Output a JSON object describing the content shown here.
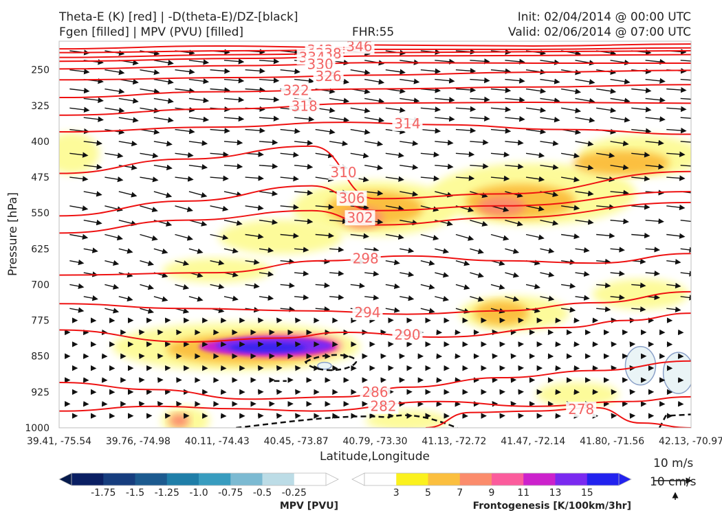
{
  "header": {
    "left_line1": "Theta-E (K) [red] | -D(theta-E)/DZ-[black]",
    "left_line2": "Fgen [filled] | MPV (PVU) [filled]",
    "center_line2": "FHR:55",
    "right_line1": "Init: 02/04/2014 @ 00:00 UTC",
    "right_line2": "Valid: 02/06/2014 @ 07:00 UTC"
  },
  "chart_data": {
    "type": "cross-section",
    "xlabel": "Latitude,Longitude",
    "ylabel": "Pressure [hPa]",
    "x_ticks": [
      "39.41, -75.54",
      "39.76, -74.98",
      "40.11, -74.43",
      "40.45, -73.87",
      "40.79, -73.30",
      "41.13, -72.72",
      "41.47, -72.14",
      "41.80, -71.56",
      "42.13, -70.97"
    ],
    "y_ticks": [
      "250",
      "325",
      "400",
      "475",
      "550",
      "625",
      "700",
      "775",
      "850",
      "925",
      "1000"
    ],
    "ylim": [
      1000,
      190
    ],
    "y_scale": "linear",
    "grid": false,
    "theta_e_contours": [
      {
        "label": "346",
        "points": [
          [
            0.0,
            206
          ],
          [
            0.25,
            200
          ],
          [
            0.45,
            203
          ],
          [
            0.5,
            198
          ],
          [
            0.75,
            200
          ],
          [
            1.0,
            196
          ]
        ]
      },
      {
        "label": "342",
        "points": [
          [
            0.0,
            214
          ],
          [
            0.3,
            210
          ],
          [
            0.5,
            207
          ],
          [
            0.75,
            207
          ],
          [
            1.0,
            204
          ]
        ]
      },
      {
        "label": "338",
        "points": [
          [
            0.0,
            224
          ],
          [
            0.3,
            218
          ],
          [
            0.5,
            214
          ],
          [
            0.75,
            212
          ],
          [
            1.0,
            210
          ]
        ]
      },
      {
        "label": "334",
        "points": [
          [
            0.0,
            232
          ],
          [
            0.3,
            226
          ],
          [
            0.5,
            221
          ],
          [
            0.75,
            220
          ],
          [
            1.0,
            218
          ]
        ]
      },
      {
        "label": "330",
        "points": [
          [
            0.0,
            248
          ],
          [
            0.3,
            241
          ],
          [
            0.5,
            235
          ],
          [
            0.75,
            236
          ],
          [
            1.0,
            236
          ]
        ]
      },
      {
        "label": "326",
        "points": [
          [
            0.0,
            271
          ],
          [
            0.3,
            266
          ],
          [
            0.5,
            261
          ],
          [
            0.75,
            255
          ],
          [
            1.0,
            251
          ]
        ]
      },
      {
        "label": "322",
        "points": [
          [
            0.0,
            308
          ],
          [
            0.25,
            296
          ],
          [
            0.5,
            290
          ],
          [
            0.75,
            286
          ],
          [
            1.0,
            281
          ]
        ]
      },
      {
        "label": "318",
        "points": [
          [
            0.0,
            345
          ],
          [
            0.25,
            332
          ],
          [
            0.5,
            320
          ],
          [
            0.75,
            318
          ],
          [
            1.0,
            320
          ]
        ]
      },
      {
        "label": "314",
        "points": [
          [
            0.0,
            380
          ],
          [
            0.25,
            370
          ],
          [
            0.45,
            360
          ],
          [
            0.6,
            365
          ],
          [
            0.8,
            375
          ],
          [
            1.0,
            385
          ]
        ]
      },
      {
        "label": "310",
        "points": [
          [
            0.0,
            467
          ],
          [
            0.2,
            437
          ],
          [
            0.4,
            410
          ],
          [
            0.5,
            520
          ],
          [
            0.7,
            510
          ],
          [
            1.0,
            463
          ]
        ]
      },
      {
        "label": "306",
        "points": [
          [
            0.0,
            556
          ],
          [
            0.2,
            525
          ],
          [
            0.4,
            493
          ],
          [
            0.5,
            545
          ],
          [
            0.7,
            535
          ],
          [
            1.0,
            505
          ]
        ]
      },
      {
        "label": "302",
        "points": [
          [
            0.0,
            592
          ],
          [
            0.2,
            565
          ],
          [
            0.4,
            545
          ],
          [
            0.5,
            575
          ],
          [
            0.7,
            560
          ],
          [
            1.0,
            528
          ]
        ]
      },
      {
        "label": "298",
        "points": [
          [
            0.0,
            680
          ],
          [
            0.25,
            675
          ],
          [
            0.42,
            650
          ],
          [
            0.55,
            640
          ],
          [
            0.7,
            650
          ],
          [
            0.85,
            655
          ],
          [
            1.0,
            635
          ]
        ]
      },
      {
        "label": "294",
        "points": [
          [
            0.0,
            740
          ],
          [
            0.2,
            750
          ],
          [
            0.4,
            755
          ],
          [
            0.55,
            762
          ],
          [
            0.7,
            755
          ],
          [
            0.85,
            738
          ],
          [
            1.0,
            715
          ]
        ]
      },
      {
        "label": "290",
        "points": [
          [
            0.0,
            795
          ],
          [
            0.2,
            820
          ],
          [
            0.35,
            812
          ],
          [
            0.45,
            800
          ],
          [
            0.6,
            810
          ],
          [
            0.8,
            790
          ],
          [
            0.9,
            775
          ],
          [
            1.0,
            760
          ]
        ]
      },
      {
        "label": "286",
        "points": [
          [
            0.0,
            905
          ],
          [
            0.15,
            920
          ],
          [
            0.3,
            940
          ],
          [
            0.45,
            935
          ],
          [
            0.55,
            915
          ],
          [
            0.7,
            895
          ],
          [
            0.85,
            880
          ],
          [
            1.0,
            860
          ]
        ]
      },
      {
        "label": "282",
        "points": [
          [
            0.0,
            965
          ],
          [
            0.15,
            955
          ],
          [
            0.28,
            960
          ],
          [
            0.4,
            965
          ],
          [
            0.6,
            945
          ],
          [
            0.75,
            955
          ],
          [
            0.9,
            945
          ],
          [
            1.0,
            935
          ]
        ]
      },
      {
        "label": "278",
        "points": [
          [
            0.58,
            1000
          ],
          [
            0.65,
            968
          ],
          [
            0.75,
            965
          ],
          [
            0.85,
            958
          ],
          [
            0.92,
            990
          ],
          [
            1.0,
            1000
          ]
        ]
      }
    ],
    "fgen_levels": [
      3,
      5,
      7,
      9,
      11,
      13,
      15
    ],
    "fgen_colors": [
      "#fbf11e",
      "#fbbf3f",
      "#fb8c6c",
      "#fb5c9c",
      "#cc22cc",
      "#7a2af0",
      "#2222ee"
    ],
    "mpv_levels": [
      -1.75,
      -1.5,
      -1.25,
      -1.0,
      -0.75,
      -0.5,
      -0.25
    ],
    "mpv_colors": [
      "#0a1f63",
      "#163d7e",
      "#1c5a8f",
      "#1f7ea8",
      "#389cbf",
      "#7cbad2",
      "#bcdce6"
    ],
    "wind_reference": {
      "horizontal": "10 m/s",
      "vertical": "10 cm/s"
    },
    "colorbar_mpv_label": "MPV [PVU]",
    "colorbar_mpv_ticks": [
      "-1.75",
      "-1.5",
      "-1.25",
      "-1.0",
      "-0.75",
      "-0.5",
      "-0.25"
    ],
    "colorbar_fgen_label": "Frontogenesis [K/100km/3hr]",
    "colorbar_fgen_ticks": [
      "3",
      "5",
      "7",
      "9",
      "11",
      "13",
      "15"
    ]
  }
}
